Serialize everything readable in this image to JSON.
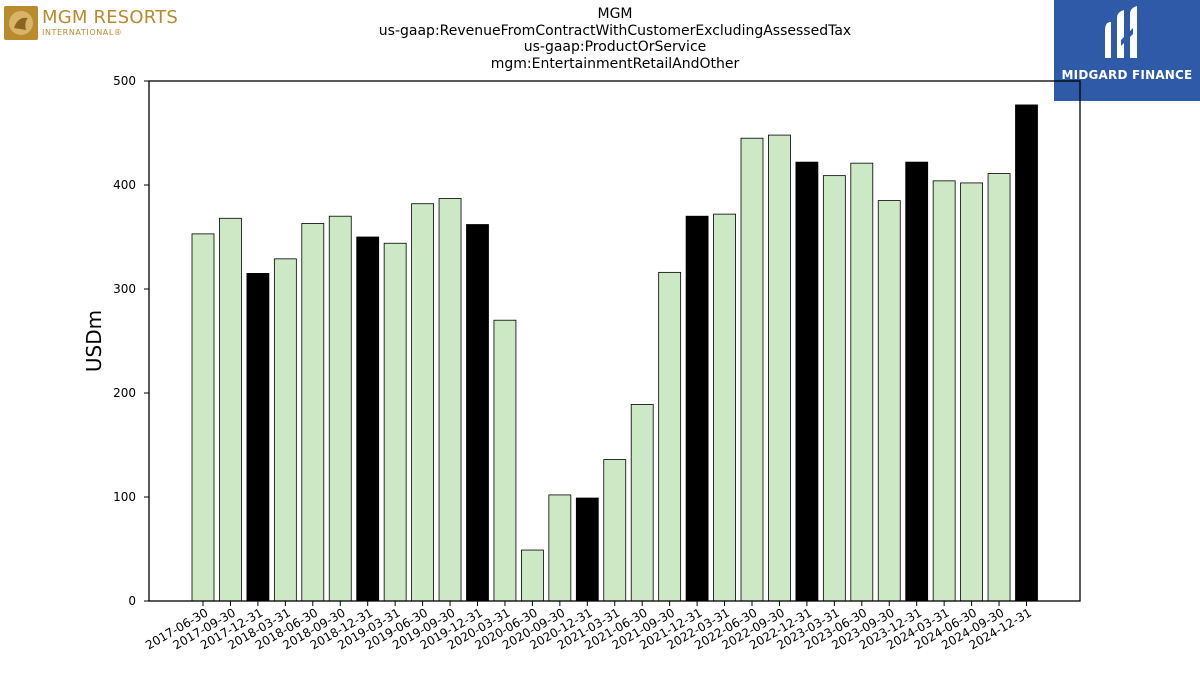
{
  "logos": {
    "left": {
      "brand": "MGM RESORTS",
      "sub": "INTERNATIONAL®",
      "color": "#b98a2e"
    },
    "right": {
      "text": "MIDGARD FINANCE",
      "background": "#2e5aa8",
      "icon": "midgard-m-logo-icon"
    }
  },
  "colors": {
    "highlight": "#000000",
    "default": "#cce8c4",
    "edge": "#000000"
  },
  "chart_data": {
    "type": "bar",
    "title_lines": [
      "MGM",
      "us-gaap:RevenueFromContractWithCustomerExcludingAssessedTax",
      "us-gaap:ProductOrService",
      "mgm:EntertainmentRetailAndOther"
    ],
    "xlabel": "",
    "ylabel": "USDm",
    "ylim": [
      0,
      500
    ],
    "yticks": [
      0,
      100,
      200,
      300,
      400,
      500
    ],
    "grid": false,
    "categories": [
      "2017-06-30",
      "2017-09-30",
      "2017-12-31",
      "2018-03-31",
      "2018-06-30",
      "2018-09-30",
      "2018-12-31",
      "2019-03-31",
      "2019-06-30",
      "2019-09-30",
      "2019-12-31",
      "2020-03-31",
      "2020-06-30",
      "2020-09-30",
      "2020-12-31",
      "2021-03-31",
      "2021-06-30",
      "2021-09-30",
      "2021-12-31",
      "2022-03-31",
      "2022-06-30",
      "2022-09-30",
      "2022-12-31",
      "2023-03-31",
      "2023-06-30",
      "2023-09-30",
      "2023-12-31",
      "2024-03-31",
      "2024-06-30",
      "2024-09-30",
      "2024-12-31"
    ],
    "values": [
      353,
      368,
      315,
      329,
      363,
      370,
      350,
      344,
      382,
      387,
      362,
      270,
      49,
      102,
      99,
      136,
      189,
      316,
      370,
      372,
      445,
      448,
      422,
      409,
      421,
      385,
      422,
      404,
      402,
      411,
      477
    ],
    "highlighted": [
      false,
      false,
      true,
      false,
      false,
      false,
      true,
      false,
      false,
      false,
      true,
      false,
      false,
      false,
      true,
      false,
      false,
      false,
      true,
      false,
      false,
      false,
      true,
      false,
      false,
      false,
      true,
      false,
      false,
      false,
      true
    ]
  }
}
